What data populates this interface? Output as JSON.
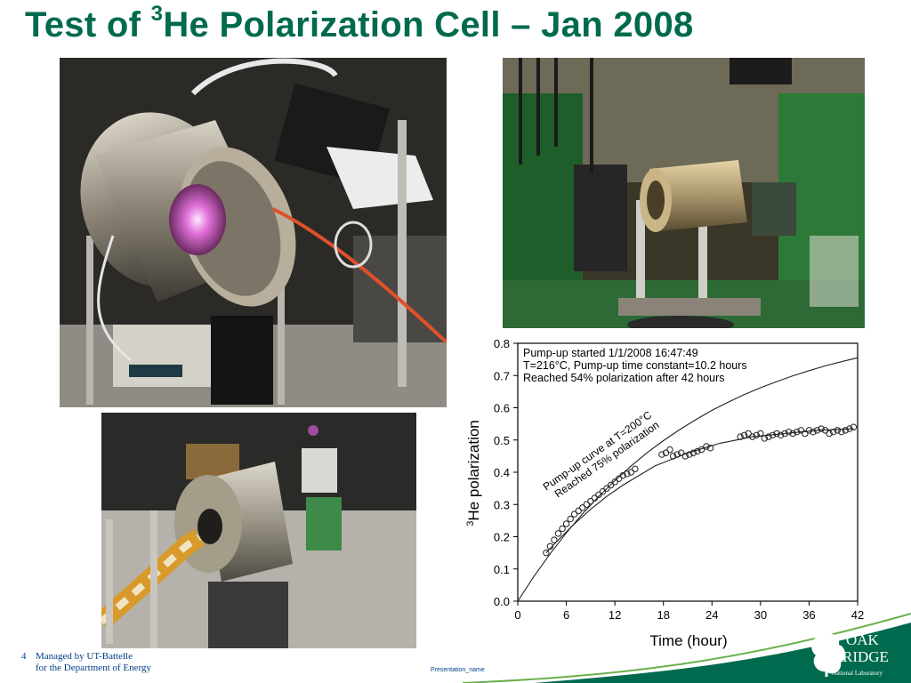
{
  "slide": {
    "title_prefix": "Test of ",
    "title_sup": "3",
    "title_rest": "He Polarization Cell – Jan 2008",
    "page_number": "4",
    "footer_line1": "Managed by UT-Battelle",
    "footer_line2": "for the Department of Energy",
    "presentation_name": "Presentation_name",
    "logo_line1": "OAK",
    "logo_line2": "RIDGE",
    "logo_line3": "National Laboratory",
    "brand_color": "#006a4e"
  },
  "chart_data": {
    "type": "scatter",
    "xlabel": "Time (hour)",
    "ylabel_sup": "3",
    "ylabel": "He polarization",
    "xlim": [
      0,
      42
    ],
    "ylim": [
      0,
      0.8
    ],
    "xticks": [
      0,
      6,
      12,
      18,
      24,
      30,
      36,
      42
    ],
    "yticks": [
      "0.0",
      "0.1",
      "0.2",
      "0.3",
      "0.4",
      "0.5",
      "0.6",
      "0.7",
      "0.8"
    ],
    "annotation_lines": [
      "Pump-up started 1/1/2008 16:47:49",
      "T=216°C, Pump-up time constant=10.2 hours",
      "Reached 54% polarization after 42 hours"
    ],
    "curve_label_line1": "Pump-up curve at T=200°C",
    "curve_label_line2": "Reached 75% polarization",
    "series": [
      {
        "kind": "points",
        "x": [
          3.5,
          4.0,
          4.5,
          5.0,
          5.5,
          6.0,
          6.5,
          7.0,
          7.5,
          8.0,
          8.5,
          9.0,
          9.5,
          10.0,
          10.5,
          11.0,
          11.5,
          12.0,
          12.5,
          13.0,
          13.5,
          14.0,
          14.5,
          17.8,
          18.3,
          18.8,
          19.2,
          19.7,
          20.2,
          20.7,
          21.2,
          21.7,
          22.2,
          22.7,
          23.3,
          23.8,
          27.5,
          28.0,
          28.5,
          29.0,
          29.5,
          30.0,
          30.5,
          31.0,
          31.5,
          32.0,
          32.5,
          33.0,
          33.5,
          34.0,
          34.5,
          35.0,
          35.5,
          36.0,
          36.5,
          37.0,
          37.5,
          38.0,
          38.5,
          39.0,
          39.5,
          40.0,
          40.5,
          41.0,
          41.5
        ],
        "y": [
          0.15,
          0.17,
          0.19,
          0.21,
          0.225,
          0.24,
          0.255,
          0.27,
          0.28,
          0.29,
          0.3,
          0.31,
          0.32,
          0.33,
          0.34,
          0.35,
          0.36,
          0.37,
          0.38,
          0.39,
          0.395,
          0.4,
          0.41,
          0.455,
          0.46,
          0.47,
          0.45,
          0.455,
          0.46,
          0.45,
          0.455,
          0.46,
          0.465,
          0.47,
          0.48,
          0.475,
          0.51,
          0.515,
          0.52,
          0.51,
          0.515,
          0.52,
          0.505,
          0.51,
          0.515,
          0.52,
          0.515,
          0.52,
          0.525,
          0.52,
          0.525,
          0.53,
          0.52,
          0.53,
          0.525,
          0.53,
          0.535,
          0.53,
          0.52,
          0.525,
          0.53,
          0.525,
          0.53,
          0.535,
          0.54
        ]
      },
      {
        "kind": "fit",
        "x": [
          3.5,
          5,
          7,
          9,
          11,
          13,
          15,
          17,
          19,
          21,
          23,
          25,
          27,
          29,
          31,
          33,
          35,
          37,
          39,
          41.5
        ],
        "y": [
          0.15,
          0.19,
          0.24,
          0.285,
          0.325,
          0.36,
          0.39,
          0.42,
          0.44,
          0.46,
          0.475,
          0.49,
          0.5,
          0.51,
          0.515,
          0.52,
          0.525,
          0.53,
          0.532,
          0.535
        ]
      },
      {
        "kind": "curve",
        "x": [
          0,
          2,
          4,
          6,
          8,
          10,
          12,
          14,
          16,
          18,
          20,
          22,
          24,
          26,
          28,
          30,
          32,
          34,
          36,
          38,
          40,
          42
        ],
        "y": [
          0,
          0.077,
          0.147,
          0.212,
          0.271,
          0.325,
          0.374,
          0.419,
          0.461,
          0.498,
          0.532,
          0.563,
          0.592,
          0.617,
          0.641,
          0.662,
          0.681,
          0.699,
          0.715,
          0.73,
          0.743,
          0.755
        ]
      }
    ]
  }
}
